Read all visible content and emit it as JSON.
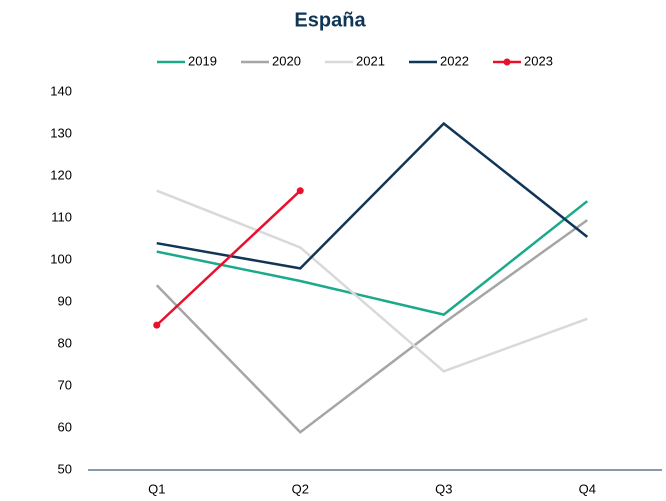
{
  "chart_data": {
    "type": "line",
    "title": "España",
    "categories": [
      "Q1",
      "Q2",
      "Q3",
      "Q4"
    ],
    "series": [
      {
        "name": "2019",
        "color": "#1aaa8a",
        "values": [
          102,
          95,
          87,
          114
        ]
      },
      {
        "name": "2020",
        "color": "#a6a6a6",
        "values": [
          94,
          59,
          85,
          109.5
        ]
      },
      {
        "name": "2021",
        "color": "#d9d9d9",
        "values": [
          116.5,
          103,
          73.5,
          86
        ]
      },
      {
        "name": "2022",
        "color": "#0f3557",
        "values": [
          104,
          98,
          132.5,
          105.5
        ]
      },
      {
        "name": "2023",
        "color": "#e8112d",
        "marker": true,
        "values": [
          84.5,
          116.5,
          null,
          null
        ]
      }
    ],
    "ylim": [
      50,
      140
    ],
    "yticks": [
      50,
      60,
      70,
      80,
      90,
      100,
      110,
      120,
      130,
      140
    ],
    "grid": false,
    "legend": "top"
  }
}
